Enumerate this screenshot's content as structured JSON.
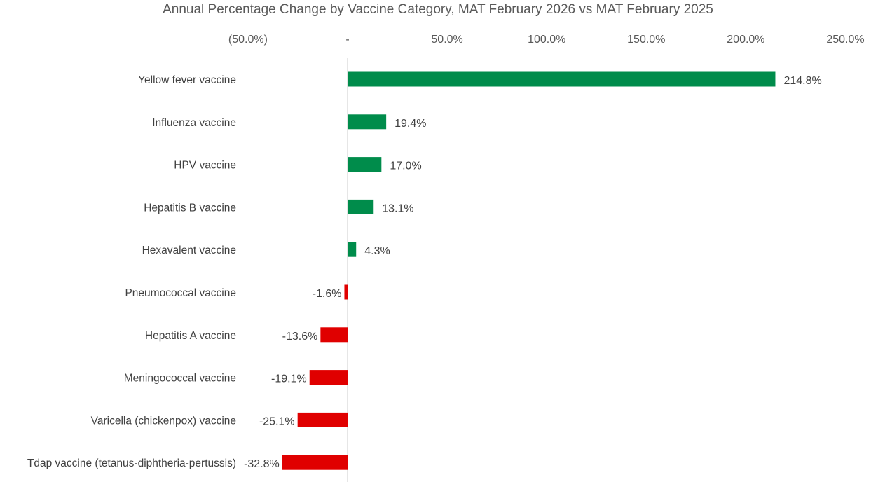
{
  "chart_data": {
    "type": "bar",
    "orientation": "horizontal",
    "title": "Annual Percentage Change by Vaccine Category, MAT February 2026 vs MAT February 2025",
    "xlim": [
      -50,
      250
    ],
    "x_ticks": [
      -50,
      0,
      50,
      100,
      150,
      200,
      250
    ],
    "x_tick_labels": [
      "(50.0%)",
      "-",
      "50.0%",
      "100.0%",
      "150.0%",
      "200.0%",
      "250.0%"
    ],
    "x_axis_position": "top",
    "grid": false,
    "categories": [
      "Yellow fever vaccine",
      "Influenza vaccine",
      "HPV vaccine",
      "Hepatitis B vaccine",
      "Hexavalent vaccine",
      "Pneumococcal vaccine",
      "Hepatitis A vaccine",
      "Meningococcal vaccine",
      "Varicella (chickenpox) vaccine",
      "Tdap vaccine (tetanus-diphtheria-pertussis)"
    ],
    "values": [
      214.8,
      19.4,
      17.0,
      13.1,
      4.3,
      -1.6,
      -13.6,
      -19.1,
      -25.1,
      -32.8
    ],
    "data_labels": [
      "214.8%",
      "19.4%",
      "17.0%",
      "13.1%",
      "4.3%",
      "-1.6%",
      "-13.6%",
      "-19.1%",
      "-25.1%",
      "-32.8%"
    ],
    "colors": {
      "positive": "#008C4B",
      "negative": "#E00000",
      "axis": "#D9D9D9"
    }
  }
}
